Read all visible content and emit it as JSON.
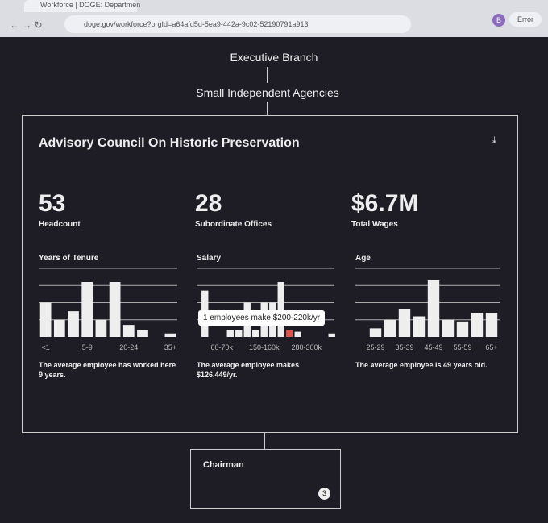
{
  "browser": {
    "tab_title": "Workforce | DOGE: Departmen",
    "url": "doge.gov/workforce?orgId=a64afd5d-5ea9-442a-9c02-52190791a913",
    "profile": "B",
    "status": "Error"
  },
  "org": {
    "level1": "Executive Branch",
    "level2": "Small Independent Agencies"
  },
  "card": {
    "title": "Advisory Council On Historic Preservation",
    "stats": [
      {
        "value": "53",
        "label": "Headcount"
      },
      {
        "value": "28",
        "label": "Subordinate Offices"
      },
      {
        "value": "$6.7M",
        "label": "Total Wages"
      }
    ],
    "charts": [
      {
        "type": "bar",
        "title": "Years of Tenure",
        "categories": [
          "<1",
          null,
          null,
          "5-9",
          null,
          null,
          "20-24",
          null,
          null,
          "35+"
        ],
        "values": [
          2,
          1,
          1.5,
          3.2,
          1,
          3.2,
          0.7,
          0.4,
          0,
          0.2
        ],
        "ylim": [
          0,
          4
        ],
        "yticks": [
          1,
          2,
          3,
          4
        ],
        "color": "#eeeeee",
        "caption": "The average employee has worked here 9 years."
      },
      {
        "type": "bar",
        "title": "Salary",
        "categories": [
          null,
          null,
          "60-70k",
          null,
          null,
          null,
          null,
          "150-160k",
          null,
          null,
          null,
          null,
          "280-300k",
          null,
          null,
          null
        ],
        "values": [
          2.7,
          0,
          0,
          0.4,
          0.4,
          2,
          0.4,
          2,
          2,
          3.2,
          0.4,
          0.3,
          0,
          0,
          0,
          0.2
        ],
        "ylim": [
          0,
          4
        ],
        "yticks": [
          1,
          2,
          3,
          4
        ],
        "color": "#eeeeee",
        "highlight_index": 10,
        "highlight_color": "#d9534f",
        "tooltip": "1 employees make $200-220k/yr",
        "caption": "The average employee makes $126,449/yr."
      },
      {
        "type": "bar",
        "title": "Age",
        "categories": [
          "25-29",
          null,
          "35-39",
          null,
          "45-49",
          null,
          "55-59",
          null,
          "65+"
        ],
        "values": [
          0.5,
          1,
          1.6,
          1.2,
          3.3,
          1,
          0.9,
          1.4,
          1.4
        ],
        "ylim": [
          0,
          4
        ],
        "yticks": [
          1,
          2,
          3,
          4
        ],
        "color": "#eeeeee",
        "caption": "The average employee is 49 years old."
      }
    ]
  },
  "child": {
    "title": "Chairman",
    "count": "3"
  }
}
